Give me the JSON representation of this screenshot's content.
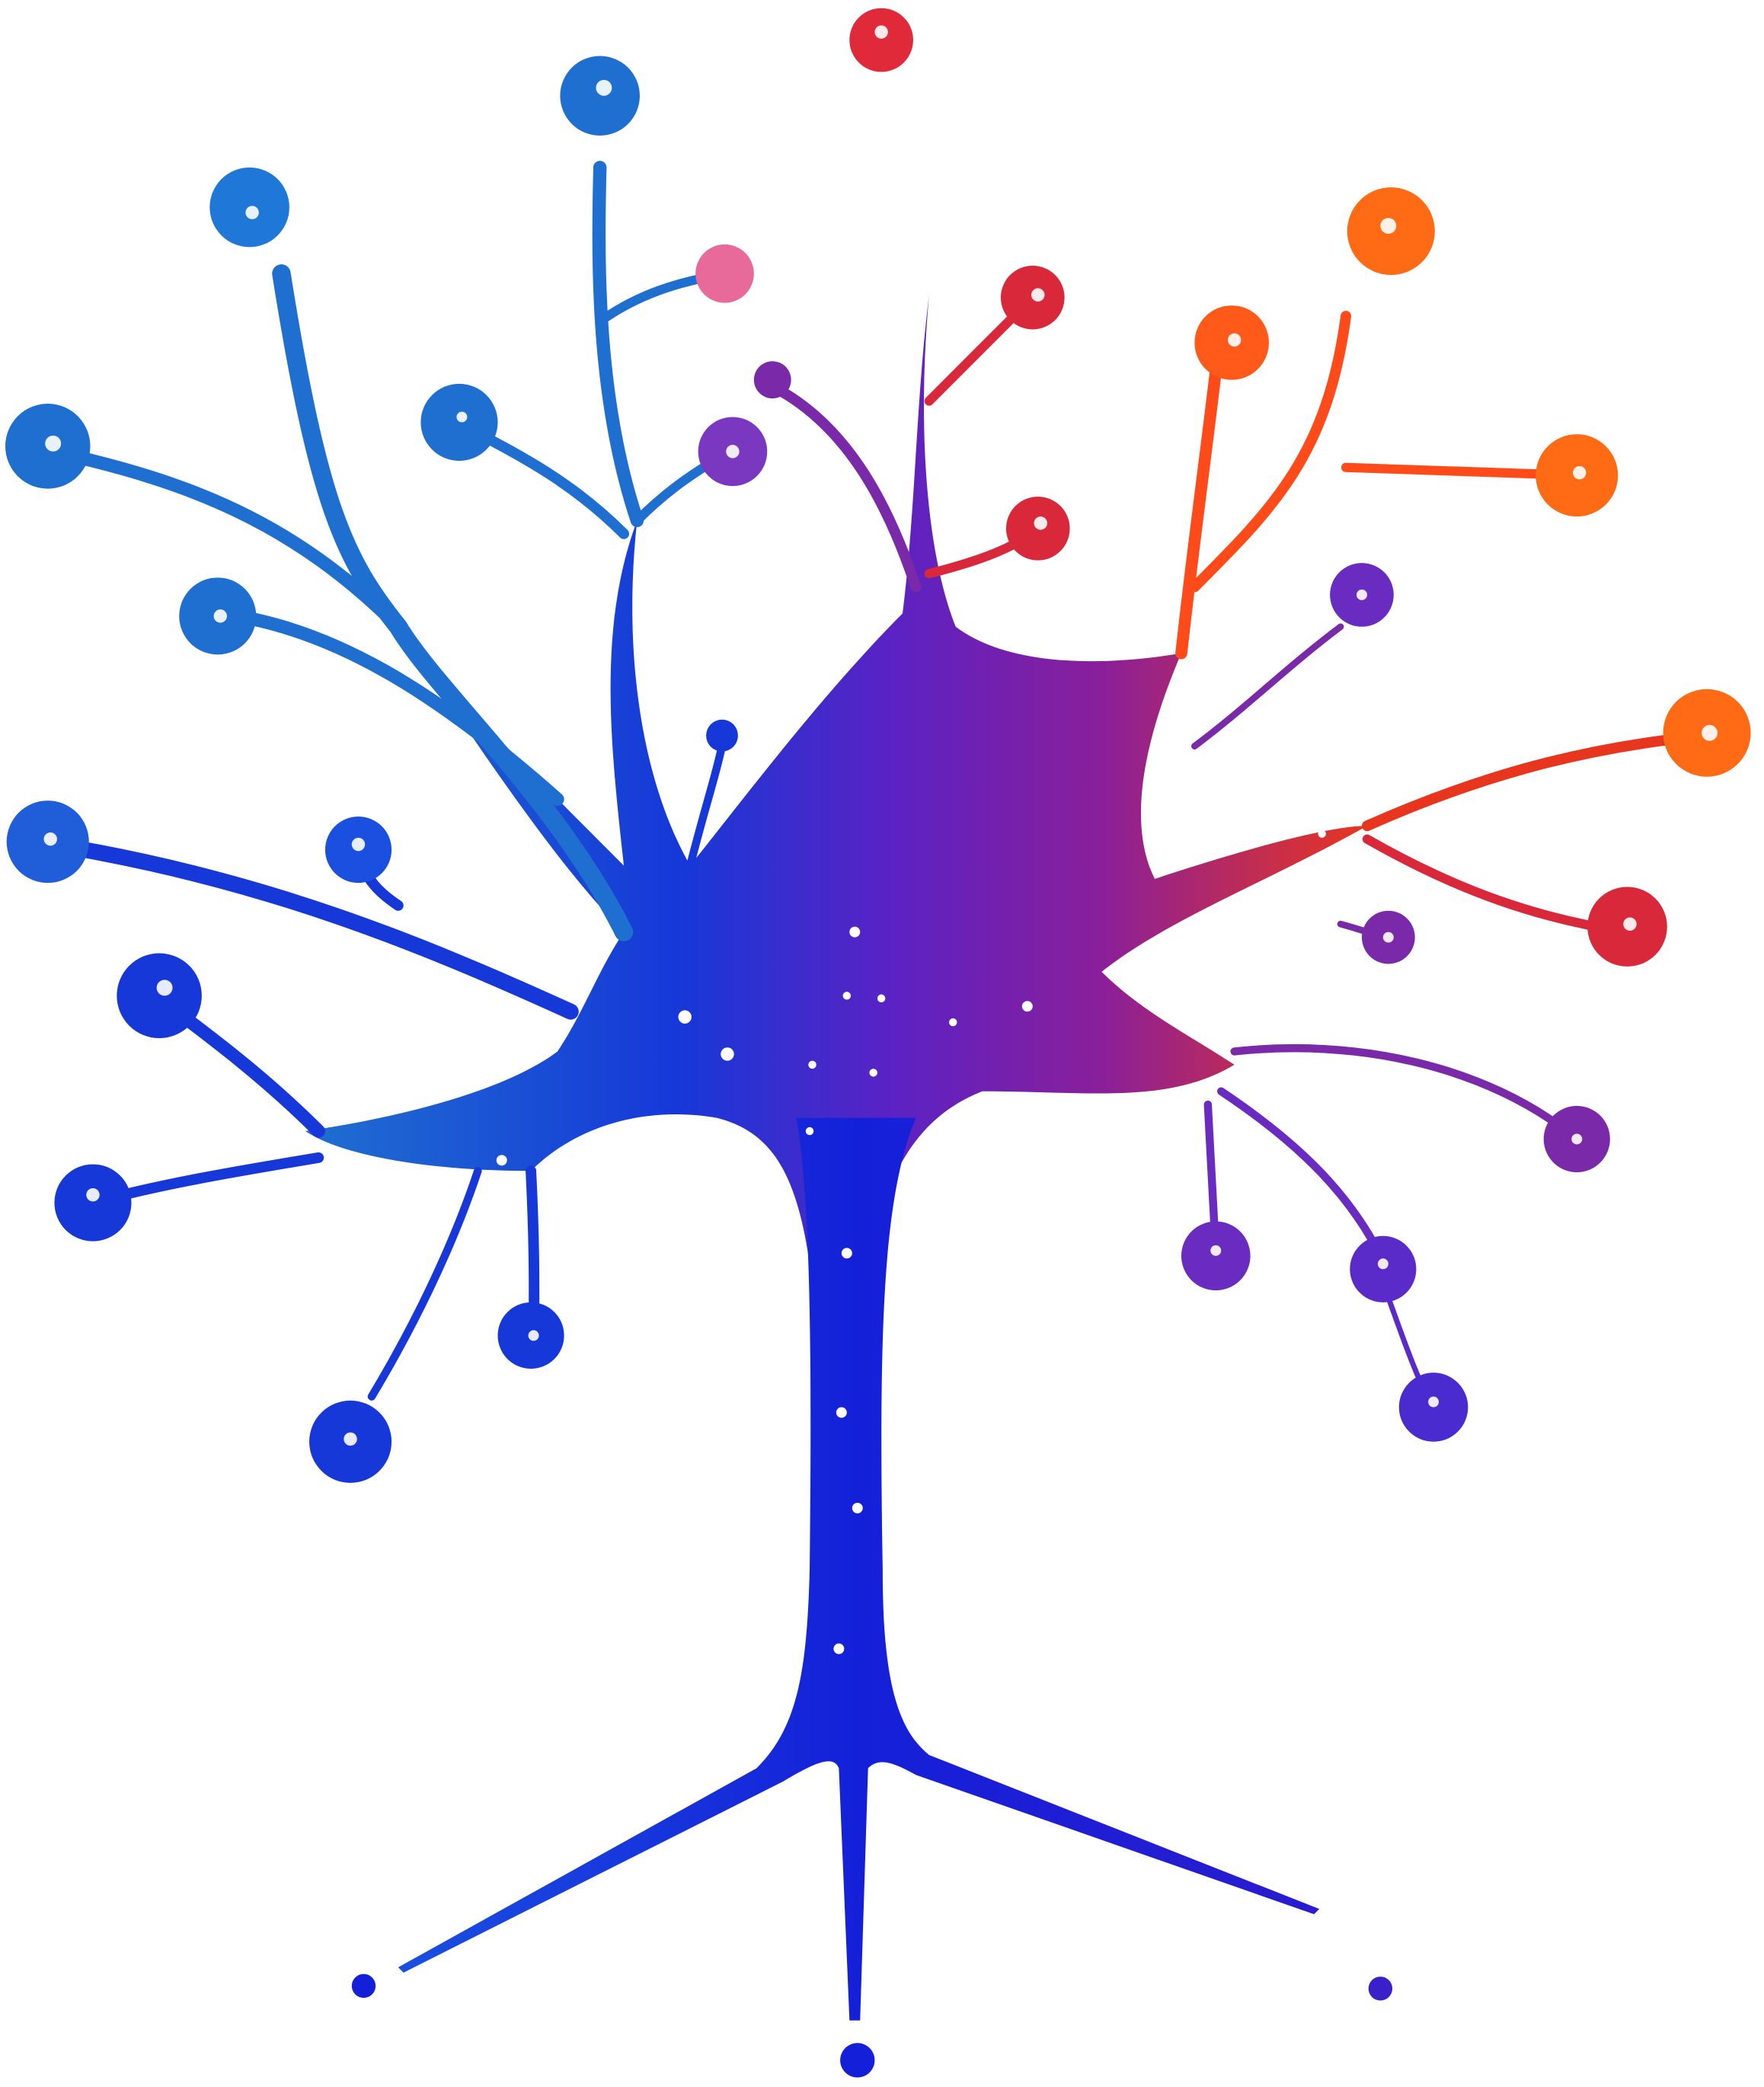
{
  "illustration": {
    "subject": "tree-network-logo",
    "background": "#ffffff",
    "colors": {
      "blue": "#1f6fd0",
      "deep_blue": "#1420d8",
      "violet": "#6a2bc0",
      "purple": "#7a2aa8",
      "magenta": "#c83a6a",
      "red": "#d8283a",
      "orange": "#ff6a14",
      "pink": "#e86a9a"
    }
  }
}
